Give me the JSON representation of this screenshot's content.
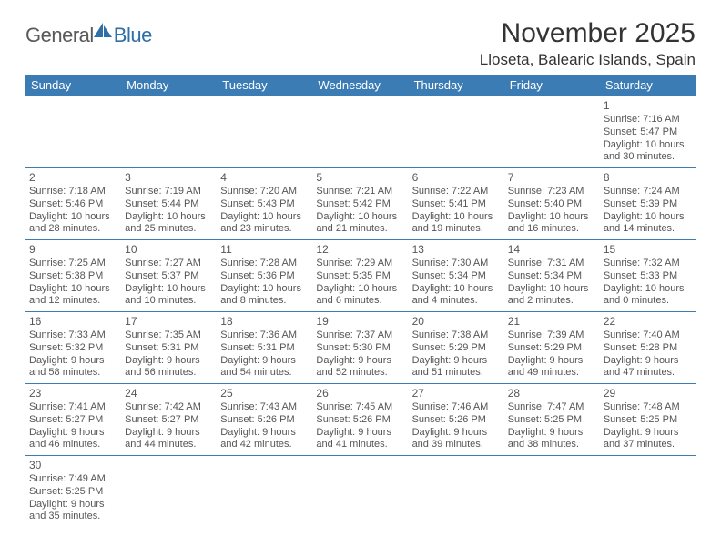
{
  "header": {
    "logo_part1": "General",
    "logo_part2": "Blue",
    "month_year": "November 2025",
    "location": "Lloseta, Balearic Islands, Spain"
  },
  "colors": {
    "header_bg": "#3b7cb5",
    "header_text": "#ffffff",
    "body_text": "#555555",
    "logo_gray": "#595959",
    "logo_blue": "#2f6fa7",
    "page_bg": "#ffffff"
  },
  "day_names": [
    "Sunday",
    "Monday",
    "Tuesday",
    "Wednesday",
    "Thursday",
    "Friday",
    "Saturday"
  ],
  "labels": {
    "sunrise": "Sunrise:",
    "sunset": "Sunset:",
    "daylight": "Daylight:"
  },
  "weeks": [
    [
      null,
      null,
      null,
      null,
      null,
      null,
      {
        "num": "1",
        "sunrise": "7:16 AM",
        "sunset": "5:47 PM",
        "daylight": "10 hours and 30 minutes."
      }
    ],
    [
      {
        "num": "2",
        "sunrise": "7:18 AM",
        "sunset": "5:46 PM",
        "daylight": "10 hours and 28 minutes."
      },
      {
        "num": "3",
        "sunrise": "7:19 AM",
        "sunset": "5:44 PM",
        "daylight": "10 hours and 25 minutes."
      },
      {
        "num": "4",
        "sunrise": "7:20 AM",
        "sunset": "5:43 PM",
        "daylight": "10 hours and 23 minutes."
      },
      {
        "num": "5",
        "sunrise": "7:21 AM",
        "sunset": "5:42 PM",
        "daylight": "10 hours and 21 minutes."
      },
      {
        "num": "6",
        "sunrise": "7:22 AM",
        "sunset": "5:41 PM",
        "daylight": "10 hours and 19 minutes."
      },
      {
        "num": "7",
        "sunrise": "7:23 AM",
        "sunset": "5:40 PM",
        "daylight": "10 hours and 16 minutes."
      },
      {
        "num": "8",
        "sunrise": "7:24 AM",
        "sunset": "5:39 PM",
        "daylight": "10 hours and 14 minutes."
      }
    ],
    [
      {
        "num": "9",
        "sunrise": "7:25 AM",
        "sunset": "5:38 PM",
        "daylight": "10 hours and 12 minutes."
      },
      {
        "num": "10",
        "sunrise": "7:27 AM",
        "sunset": "5:37 PM",
        "daylight": "10 hours and 10 minutes."
      },
      {
        "num": "11",
        "sunrise": "7:28 AM",
        "sunset": "5:36 PM",
        "daylight": "10 hours and 8 minutes."
      },
      {
        "num": "12",
        "sunrise": "7:29 AM",
        "sunset": "5:35 PM",
        "daylight": "10 hours and 6 minutes."
      },
      {
        "num": "13",
        "sunrise": "7:30 AM",
        "sunset": "5:34 PM",
        "daylight": "10 hours and 4 minutes."
      },
      {
        "num": "14",
        "sunrise": "7:31 AM",
        "sunset": "5:34 PM",
        "daylight": "10 hours and 2 minutes."
      },
      {
        "num": "15",
        "sunrise": "7:32 AM",
        "sunset": "5:33 PM",
        "daylight": "10 hours and 0 minutes."
      }
    ],
    [
      {
        "num": "16",
        "sunrise": "7:33 AM",
        "sunset": "5:32 PM",
        "daylight": "9 hours and 58 minutes."
      },
      {
        "num": "17",
        "sunrise": "7:35 AM",
        "sunset": "5:31 PM",
        "daylight": "9 hours and 56 minutes."
      },
      {
        "num": "18",
        "sunrise": "7:36 AM",
        "sunset": "5:31 PM",
        "daylight": "9 hours and 54 minutes."
      },
      {
        "num": "19",
        "sunrise": "7:37 AM",
        "sunset": "5:30 PM",
        "daylight": "9 hours and 52 minutes."
      },
      {
        "num": "20",
        "sunrise": "7:38 AM",
        "sunset": "5:29 PM",
        "daylight": "9 hours and 51 minutes."
      },
      {
        "num": "21",
        "sunrise": "7:39 AM",
        "sunset": "5:29 PM",
        "daylight": "9 hours and 49 minutes."
      },
      {
        "num": "22",
        "sunrise": "7:40 AM",
        "sunset": "5:28 PM",
        "daylight": "9 hours and 47 minutes."
      }
    ],
    [
      {
        "num": "23",
        "sunrise": "7:41 AM",
        "sunset": "5:27 PM",
        "daylight": "9 hours and 46 minutes."
      },
      {
        "num": "24",
        "sunrise": "7:42 AM",
        "sunset": "5:27 PM",
        "daylight": "9 hours and 44 minutes."
      },
      {
        "num": "25",
        "sunrise": "7:43 AM",
        "sunset": "5:26 PM",
        "daylight": "9 hours and 42 minutes."
      },
      {
        "num": "26",
        "sunrise": "7:45 AM",
        "sunset": "5:26 PM",
        "daylight": "9 hours and 41 minutes."
      },
      {
        "num": "27",
        "sunrise": "7:46 AM",
        "sunset": "5:26 PM",
        "daylight": "9 hours and 39 minutes."
      },
      {
        "num": "28",
        "sunrise": "7:47 AM",
        "sunset": "5:25 PM",
        "daylight": "9 hours and 38 minutes."
      },
      {
        "num": "29",
        "sunrise": "7:48 AM",
        "sunset": "5:25 PM",
        "daylight": "9 hours and 37 minutes."
      }
    ],
    [
      {
        "num": "30",
        "sunrise": "7:49 AM",
        "sunset": "5:25 PM",
        "daylight": "9 hours and 35 minutes."
      },
      null,
      null,
      null,
      null,
      null,
      null
    ]
  ]
}
